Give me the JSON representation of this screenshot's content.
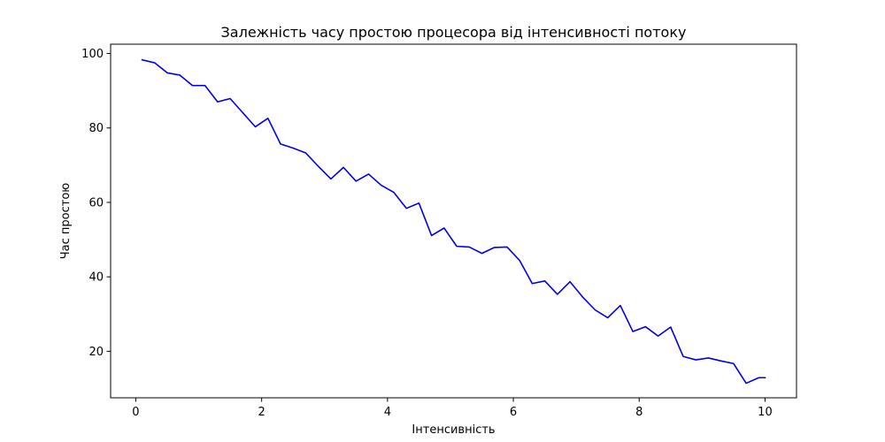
{
  "chart_data": {
    "type": "line",
    "title": "Залежність часу простою процесора від інтенсивності потоку",
    "xlabel": "Інтенсивність",
    "ylabel": "Час простою",
    "xlim": [
      -0.4,
      10.5
    ],
    "ylim": [
      7.5,
      102.5
    ],
    "xticks": [
      0,
      2,
      4,
      6,
      8,
      10
    ],
    "yticks": [
      20,
      40,
      60,
      80,
      100
    ],
    "grid": false,
    "line_color": "#0000ee",
    "series": [
      {
        "x": [
          0.1,
          0.3,
          0.5,
          0.7,
          0.9,
          1.1,
          1.3,
          1.5,
          1.7,
          1.9,
          2.1,
          2.3,
          2.5,
          2.7,
          2.9,
          3.1,
          3.3,
          3.5,
          3.7,
          3.9,
          4.1,
          4.3,
          4.5,
          4.7,
          4.9,
          5.1,
          5.3,
          5.5,
          5.7,
          5.9,
          6.1,
          6.3,
          6.5,
          6.7,
          6.9,
          7.1,
          7.3,
          7.5,
          7.7,
          7.9,
          8.1,
          8.3,
          8.5,
          8.7,
          8.9,
          9.1,
          9.3,
          9.5,
          9.7,
          9.9,
          10.0
        ],
        "y": [
          98.3,
          97.5,
          94.8,
          94.2,
          91.4,
          91.4,
          87.0,
          87.9,
          84.1,
          80.3,
          82.6,
          75.7,
          74.6,
          73.3,
          69.7,
          66.3,
          69.4,
          65.7,
          67.6,
          64.6,
          62.7,
          58.4,
          59.8,
          51.1,
          53.1,
          48.2,
          48.0,
          46.3,
          47.9,
          48.0,
          44.4,
          38.2,
          38.9,
          35.3,
          38.7,
          34.6,
          31.1,
          29.0,
          32.3,
          25.3,
          26.6,
          24.1,
          26.5,
          18.6,
          17.7,
          18.2,
          17.4,
          16.7,
          11.4,
          12.9,
          12.9
        ]
      }
    ]
  }
}
